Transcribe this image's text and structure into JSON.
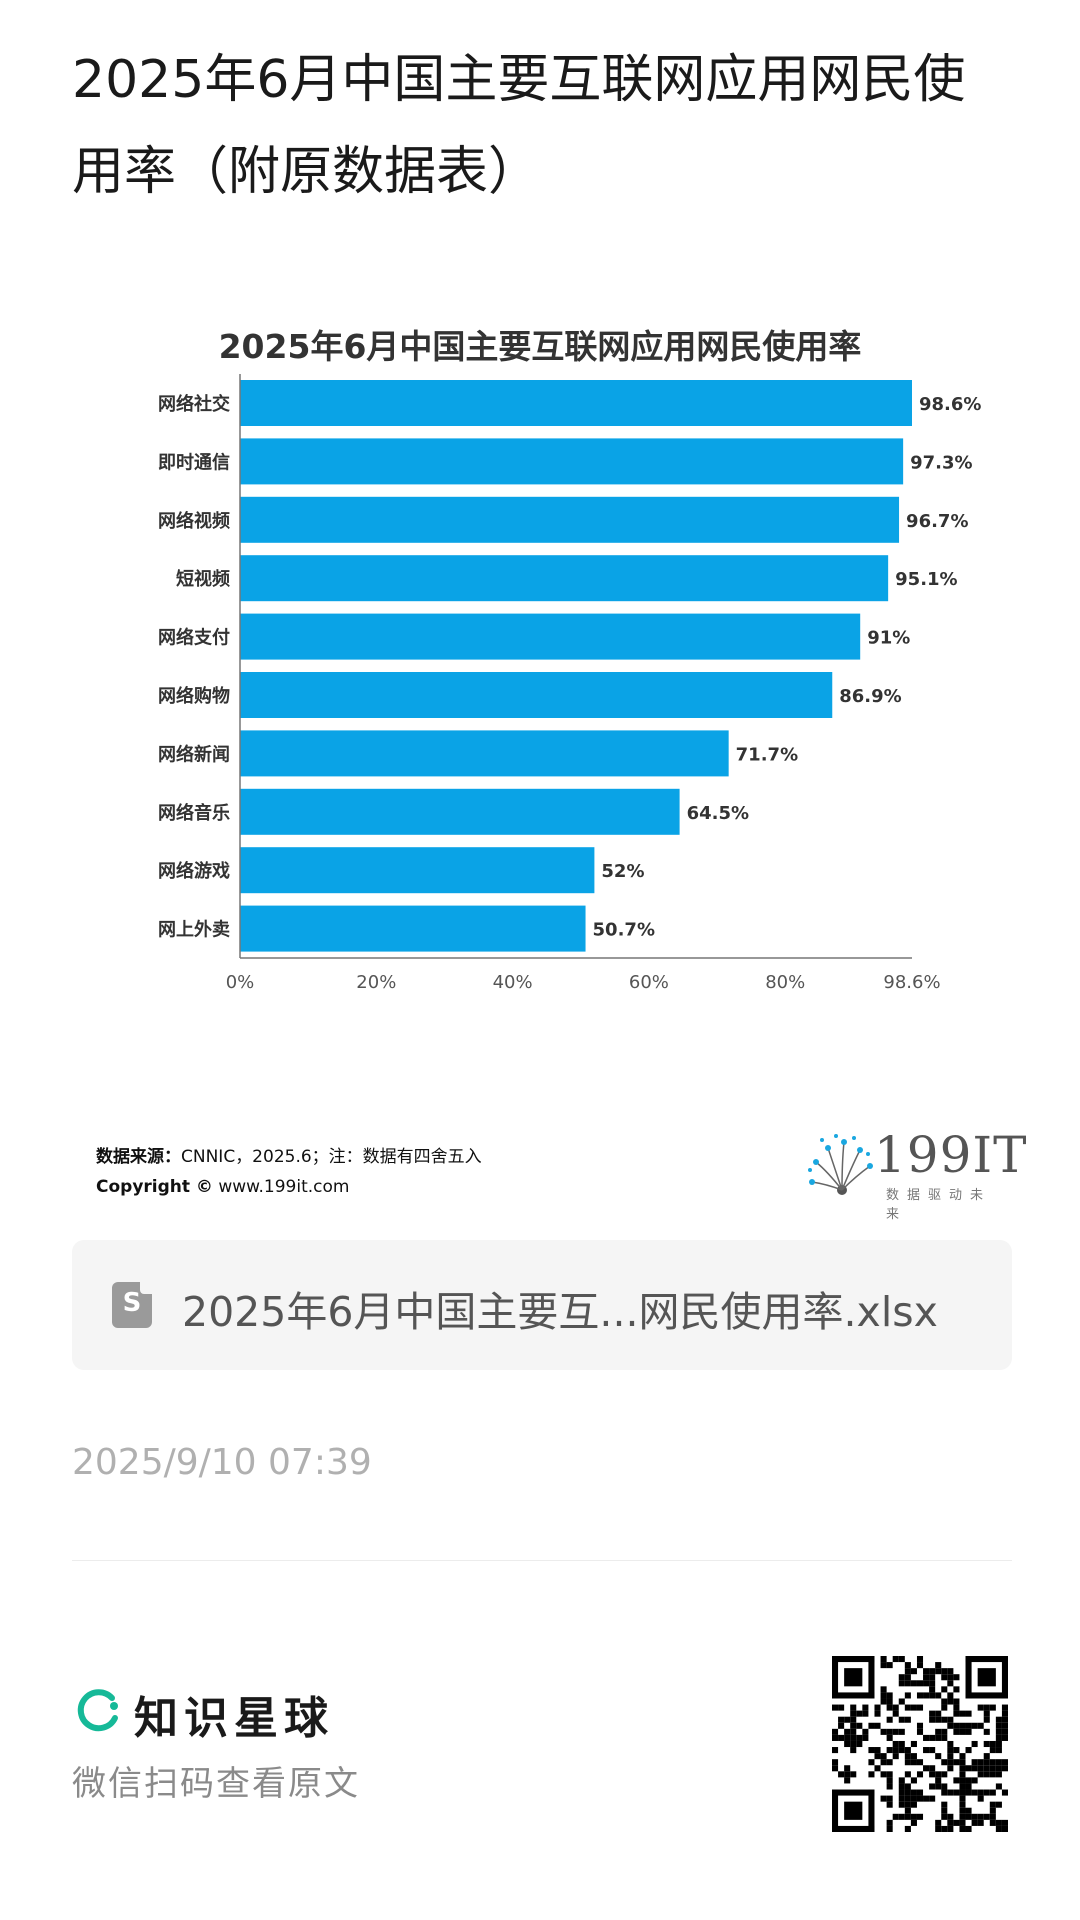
{
  "page": {
    "title": "2025年6月中国主要互联网应用网民使用率（附原数据表）"
  },
  "chart_data": {
    "type": "bar",
    "orientation": "horizontal",
    "title": "2025年6月中国主要互联网应用网民使用率",
    "categories": [
      "网络社交",
      "即时通信",
      "网络视频",
      "短视频",
      "网络支付",
      "网络购物",
      "网络新闻",
      "网络音乐",
      "网络游戏",
      "网上外卖"
    ],
    "values": [
      98.6,
      97.3,
      96.7,
      95.1,
      91,
      86.9,
      71.7,
      64.5,
      52,
      50.7
    ],
    "value_labels": [
      "98.6%",
      "97.3%",
      "96.7%",
      "95.1%",
      "91%",
      "86.9%",
      "71.7%",
      "64.5%",
      "52%",
      "50.7%"
    ],
    "xlim": [
      0,
      98.6
    ],
    "x_ticks": [
      "0%",
      "20%",
      "40%",
      "60%",
      "80%",
      "98.6%"
    ],
    "x_tick_values": [
      0,
      20,
      40,
      60,
      80,
      98.6
    ],
    "bar_color": "#0aa3e6",
    "grid": false,
    "legend": "none"
  },
  "chart_footer": {
    "source_label": "数据来源：",
    "source_text": "CNNIC，2025.6；注：数据有四舍五入",
    "copyright_label": "Copyright ©",
    "copyright_text": "www.199it.com",
    "logo_text": "199IT",
    "logo_sub": "数据驱动未来"
  },
  "file": {
    "icon": "spreadsheet-file-icon",
    "icon_letter": "S",
    "name": "2025年6月中国主要互...网民使用率.xlsx"
  },
  "timestamp": "2025/9/10 07:39",
  "brand": {
    "icon": "zsxq-logo-icon",
    "name": "知识星球",
    "hint": "微信扫码查看原文",
    "accent": "#16b998"
  }
}
